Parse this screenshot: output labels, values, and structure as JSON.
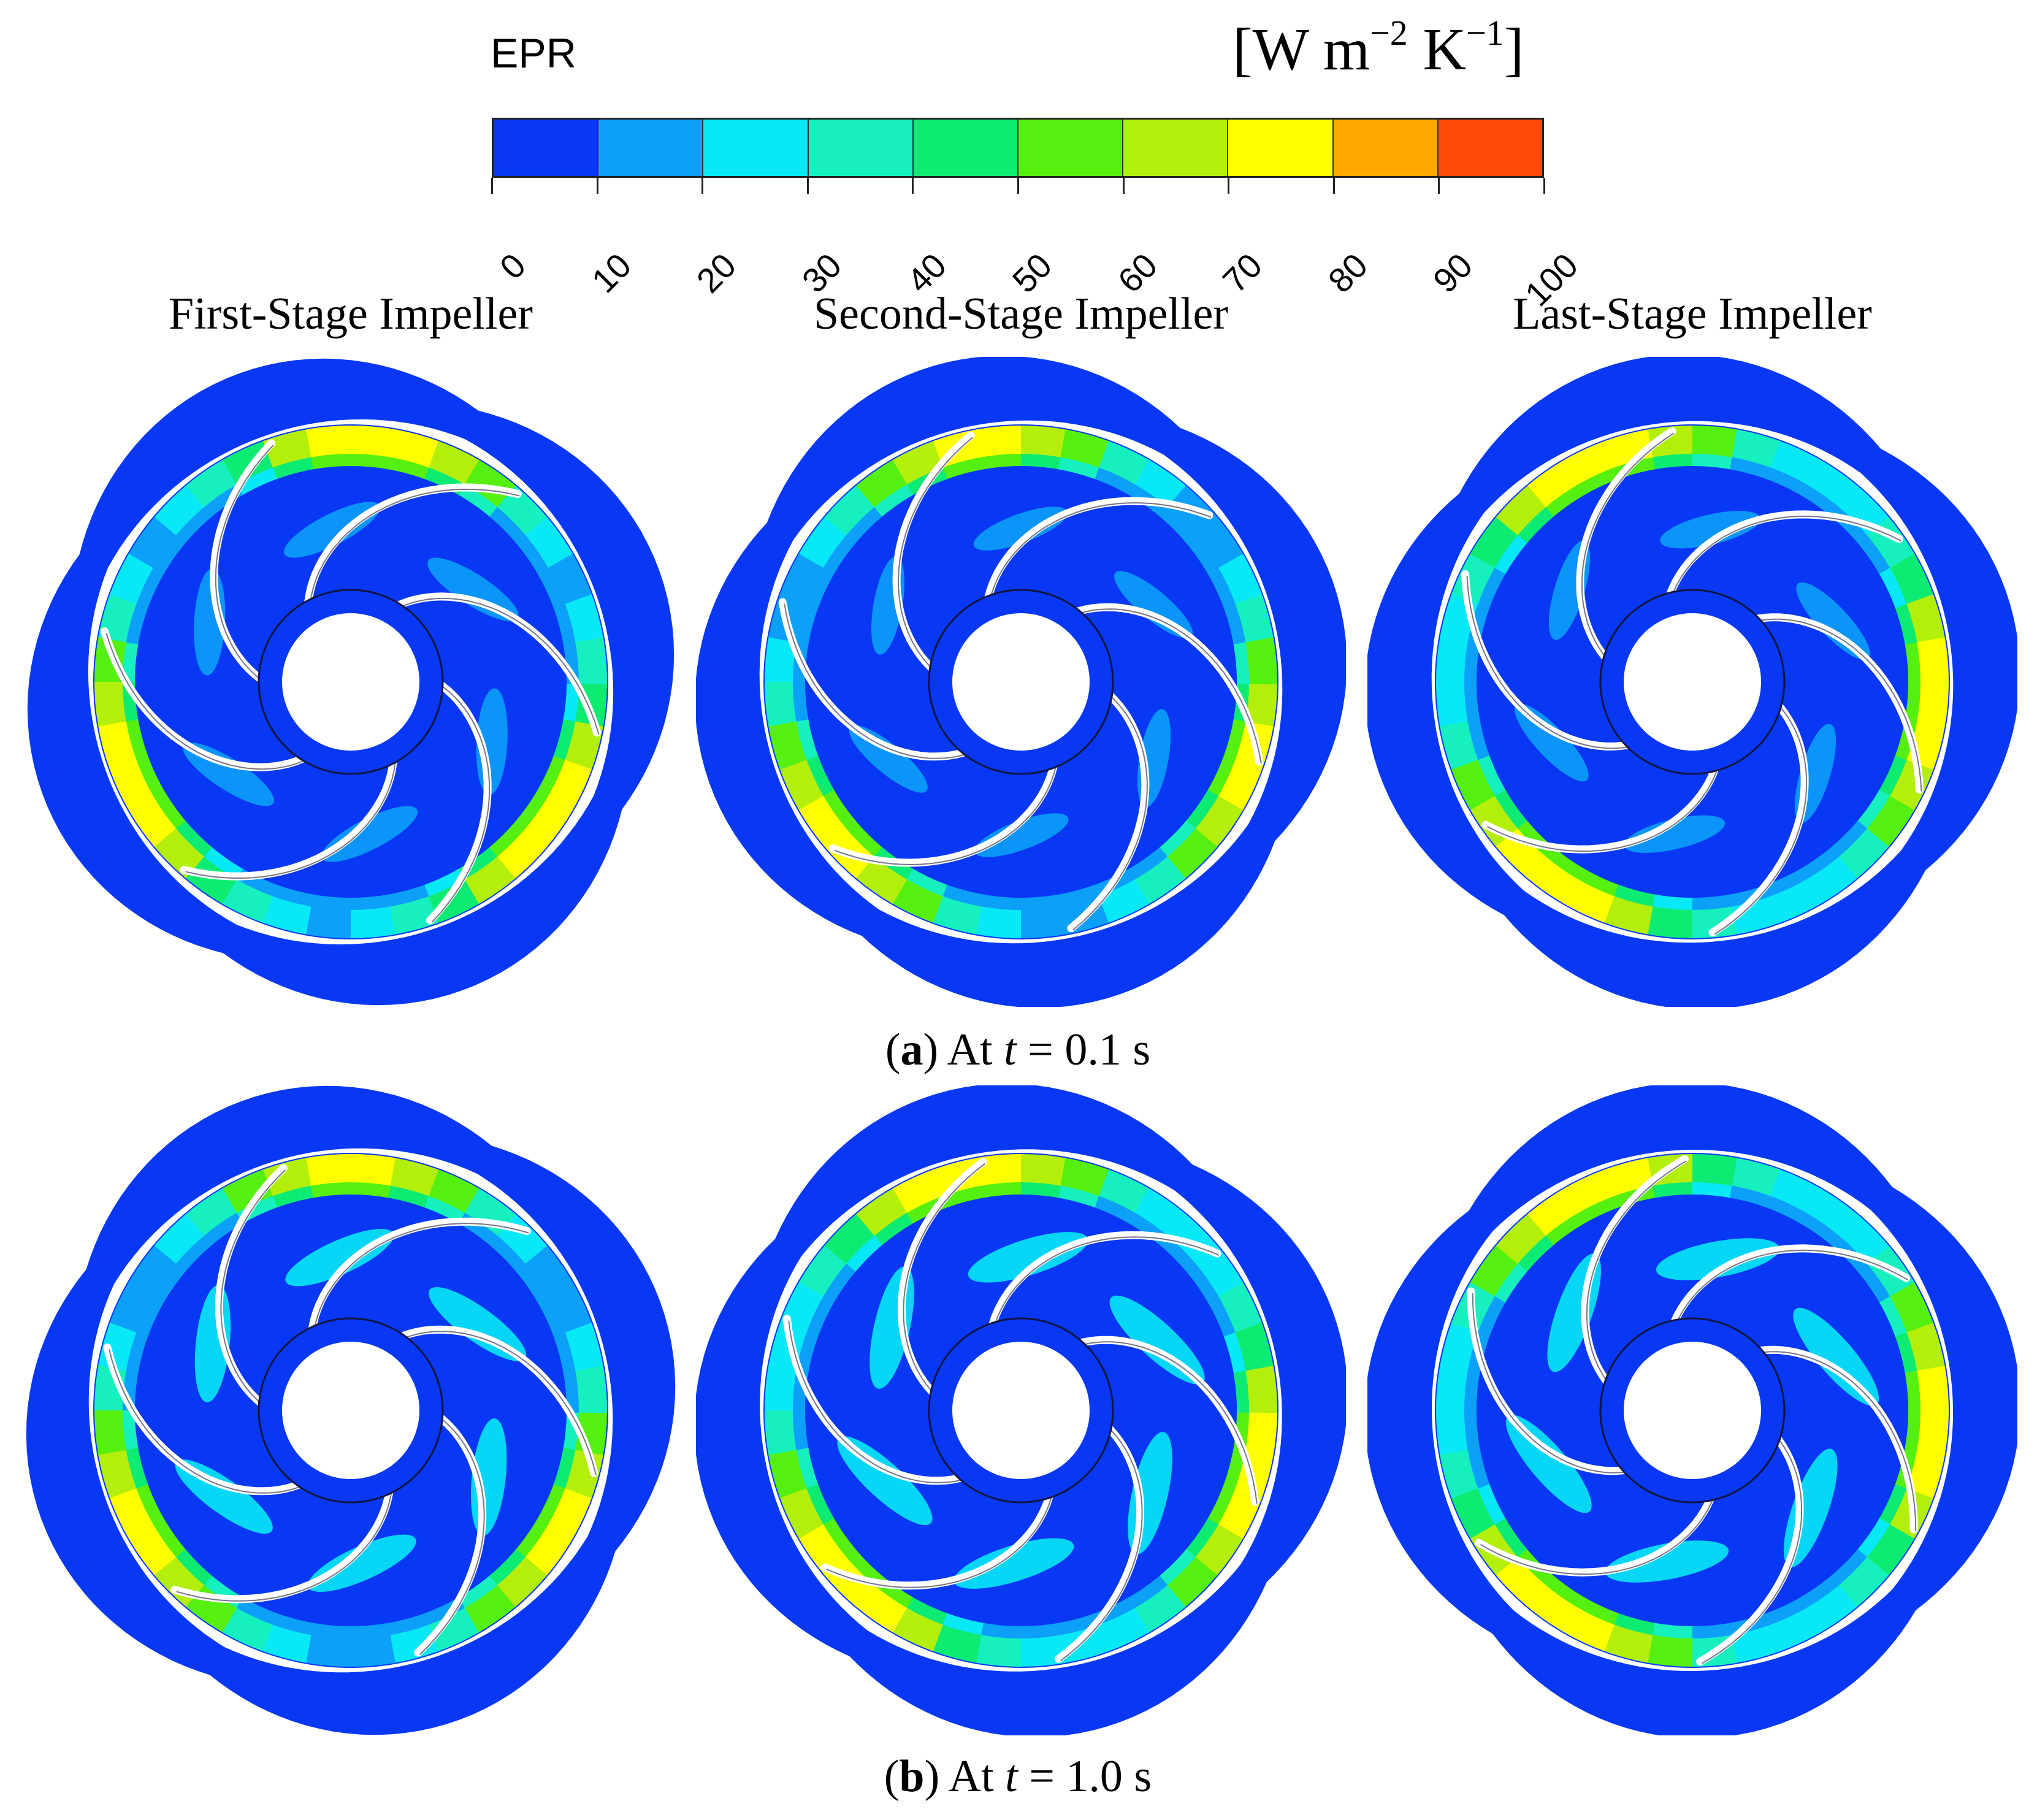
{
  "legend": {
    "variable": "EPR",
    "units_prefix": "[W m",
    "units_exp1": "−2",
    "units_mid": " K",
    "units_exp2": "−1",
    "units_suffix": "]",
    "ticks": [
      "0",
      "10",
      "20",
      "30",
      "40",
      "50",
      "60",
      "70",
      "80",
      "90",
      "100"
    ],
    "colors": [
      "#0838f4",
      "#0ca0f8",
      "#08e8f6",
      "#16f0bf",
      "#0eeb73",
      "#55ef10",
      "#b4ef0c",
      "#ffff00",
      "#ffa800",
      "#ff4a08"
    ]
  },
  "columns": [
    "First-Stage Impeller",
    "Second-Stage Impeller",
    "Last-Stage Impeller"
  ],
  "rows": [
    {
      "label": "a",
      "prefix": "At ",
      "var": "t",
      "value": " = 0.1 s"
    },
    {
      "label": "b",
      "prefix": "At ",
      "var": "t",
      "value": " = 1.0 s"
    }
  ],
  "contour_levels": [
    [
      [
        0.85,
        0.45,
        0.55
      ],
      [
        0.8,
        0.35,
        0.6
      ],
      [
        0.85,
        0.4,
        0.7
      ]
    ],
    [
      [
        0.8,
        0.6,
        0.5
      ],
      [
        0.85,
        0.7,
        0.45
      ],
      [
        0.85,
        0.7,
        0.5
      ]
    ]
  ]
}
